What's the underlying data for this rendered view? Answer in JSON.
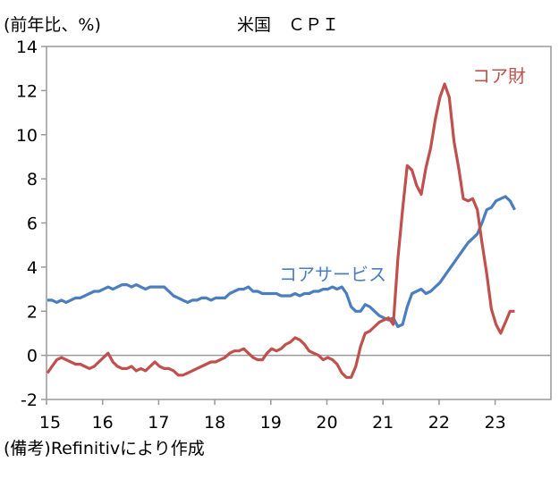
{
  "chart_data": {
    "type": "line",
    "title": "米国　ＣＰＩ",
    "ylabel": "(前年比、%)",
    "xlabel": "",
    "ylim": [
      -2,
      14
    ],
    "yticks": [
      "-2",
      "0",
      "2",
      "4",
      "6",
      "8",
      "10",
      "12",
      "14"
    ],
    "xticks": [
      "15",
      "16",
      "17",
      "18",
      "19",
      "20",
      "21",
      "22",
      "23"
    ],
    "x_start": "2015-01",
    "frequency": "monthly",
    "series": [
      {
        "name": "コアサービス",
        "color": "#4a7ebf",
        "values": [
          2.5,
          2.5,
          2.4,
          2.5,
          2.4,
          2.5,
          2.6,
          2.6,
          2.7,
          2.8,
          2.9,
          2.9,
          3.0,
          3.1,
          3.0,
          3.1,
          3.2,
          3.2,
          3.1,
          3.2,
          3.1,
          3.0,
          3.1,
          3.1,
          3.1,
          3.1,
          2.9,
          2.7,
          2.6,
          2.5,
          2.4,
          2.5,
          2.5,
          2.6,
          2.6,
          2.5,
          2.6,
          2.6,
          2.6,
          2.8,
          2.9,
          3.0,
          3.0,
          3.1,
          2.9,
          2.9,
          2.8,
          2.8,
          2.8,
          2.8,
          2.7,
          2.7,
          2.7,
          2.8,
          2.7,
          2.8,
          2.8,
          2.9,
          2.9,
          3.0,
          3.0,
          3.1,
          3.0,
          3.1,
          2.8,
          2.2,
          2.0,
          2.0,
          2.3,
          2.2,
          2.0,
          1.8,
          1.7,
          1.6,
          1.7,
          1.3,
          1.4,
          2.2,
          2.8,
          2.9,
          3.0,
          2.8,
          2.9,
          3.1,
          3.3,
          3.6,
          3.9,
          4.2,
          4.5,
          4.8,
          5.1,
          5.3,
          5.5,
          6.0,
          6.6,
          6.7,
          7.0,
          7.1,
          7.2,
          7.0,
          6.6
        ]
      },
      {
        "name": "コア財",
        "color": "#c0504d",
        "values": [
          -0.8,
          -0.5,
          -0.2,
          -0.1,
          -0.2,
          -0.3,
          -0.4,
          -0.4,
          -0.5,
          -0.6,
          -0.5,
          -0.3,
          -0.1,
          0.1,
          -0.3,
          -0.5,
          -0.6,
          -0.6,
          -0.5,
          -0.7,
          -0.6,
          -0.7,
          -0.5,
          -0.3,
          -0.5,
          -0.6,
          -0.6,
          -0.7,
          -0.9,
          -0.9,
          -0.8,
          -0.7,
          -0.6,
          -0.5,
          -0.4,
          -0.3,
          -0.3,
          -0.2,
          -0.1,
          0.1,
          0.2,
          0.2,
          0.3,
          0.1,
          -0.1,
          -0.2,
          -0.2,
          0.1,
          0.3,
          0.2,
          0.3,
          0.5,
          0.6,
          0.8,
          0.7,
          0.5,
          0.2,
          0.1,
          0.0,
          -0.2,
          -0.1,
          -0.2,
          -0.4,
          -0.8,
          -1.0,
          -1.0,
          -0.5,
          0.4,
          1.0,
          1.1,
          1.3,
          1.5,
          1.6,
          1.7,
          1.4,
          4.4,
          6.6,
          8.6,
          8.4,
          7.7,
          7.3,
          8.5,
          9.4,
          10.7,
          11.7,
          12.3,
          11.7,
          9.7,
          8.5,
          7.1,
          7.0,
          7.1,
          6.6,
          5.1,
          3.7,
          2.1,
          1.4,
          1.0,
          1.5,
          2.0,
          2.0
        ]
      }
    ]
  },
  "footer": "(備考)Refinitivにより作成"
}
